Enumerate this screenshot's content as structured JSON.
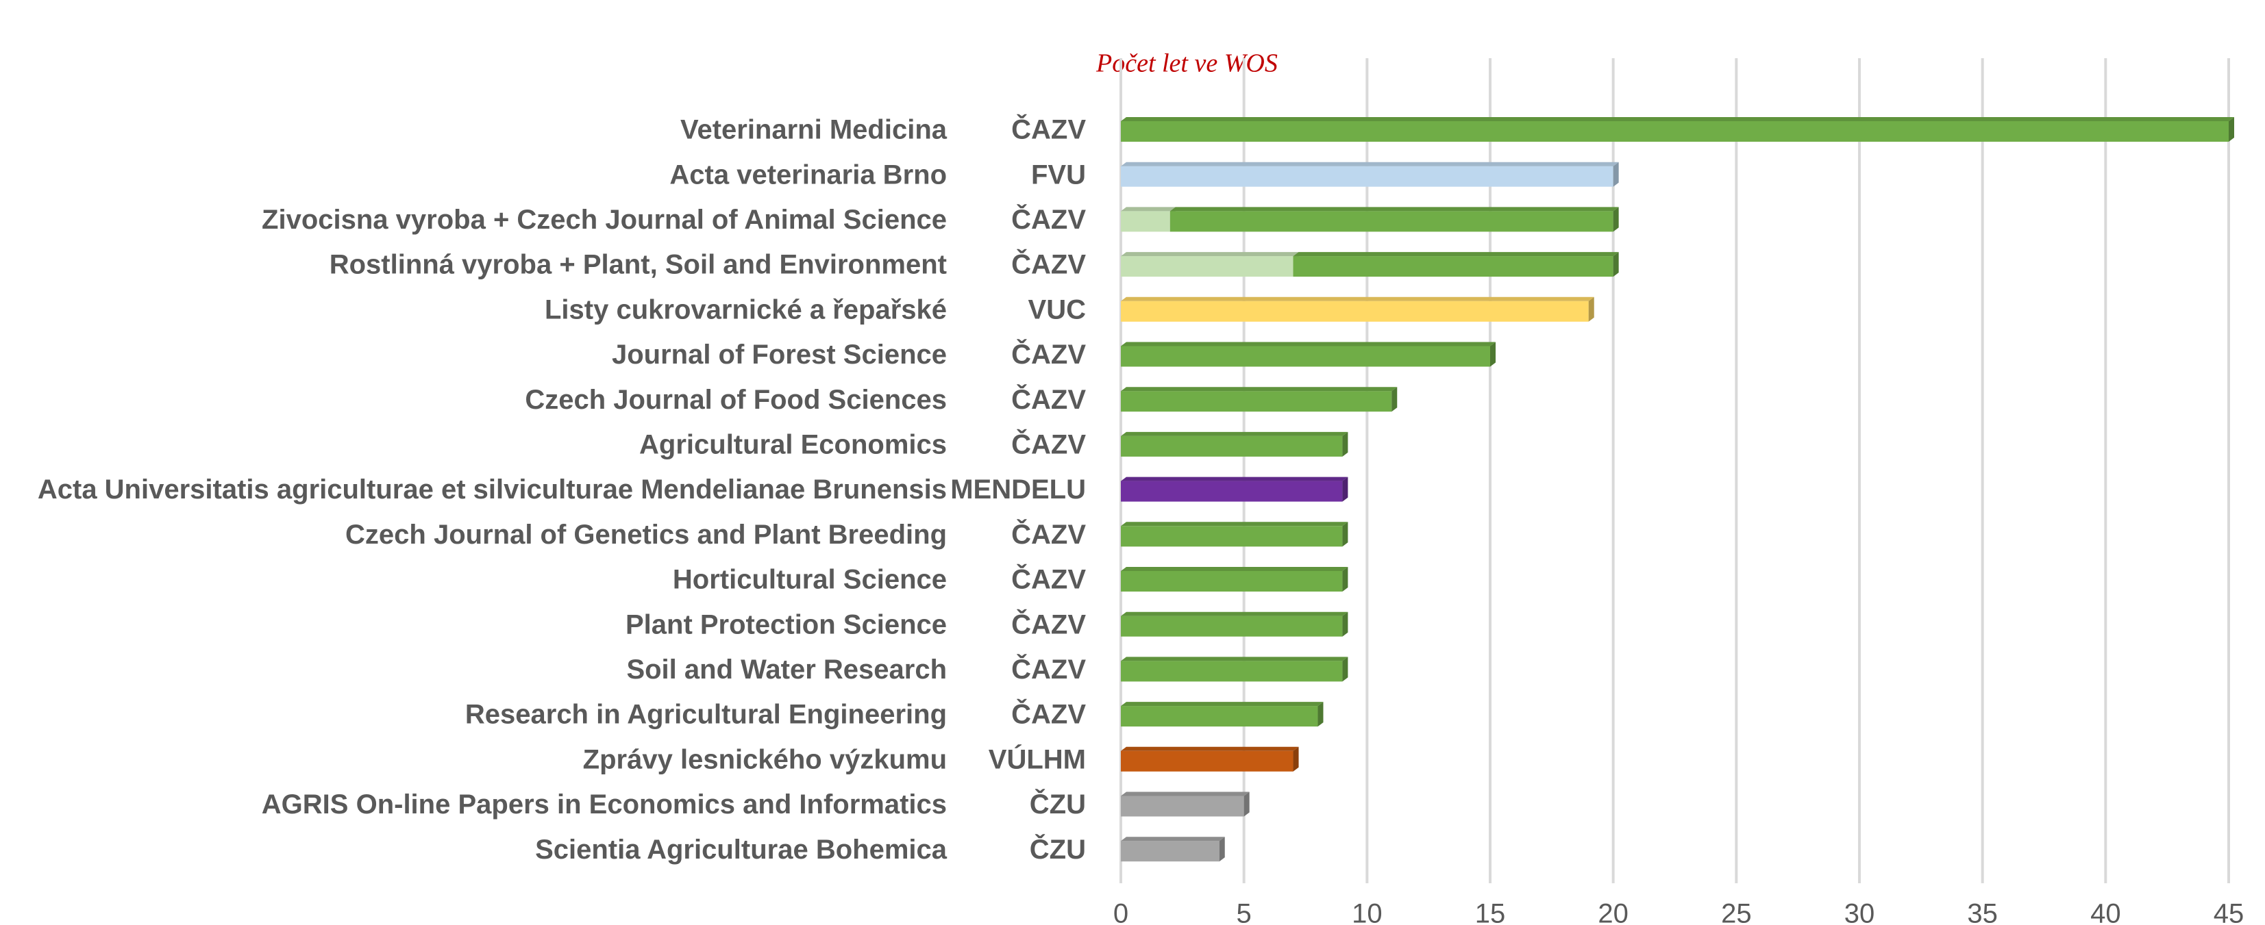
{
  "chart_data": {
    "type": "bar",
    "orientation": "horizontal",
    "title": "Počet let ve WOS",
    "categories": [
      "Veterinarni Medicina",
      "Acta veterinaria Brno",
      "Zivocisna vyroba + Czech Journal of Animal Science",
      "Rostlinná vyroba + Plant, Soil and Environment",
      "Listy cukrovarnické a řepařské",
      "Journal of Forest Science",
      "Czech Journal of Food Sciences",
      "Agricultural Economics",
      "Acta Universitatis agriculturae et silviculturae Mendelianae Brunensis",
      "Czech Journal of Genetics and Plant Breeding",
      "Horticultural Science",
      "Plant Protection Science",
      "Soil and Water Research",
      "Research in Agricultural Engineering",
      "Zprávy lesnického výzkumu",
      "AGRIS On-line Papers in Economics and Informatics",
      "Scientia Agriculturae Bohemica"
    ],
    "publishers": [
      "ČAZV",
      "FVU",
      "ČAZV",
      "ČAZV",
      "VUC",
      "ČAZV",
      "ČAZV",
      "ČAZV",
      "MENDELU",
      "ČAZV",
      "ČAZV",
      "ČAZV",
      "ČAZV",
      "ČAZV",
      "VÚLHM",
      "ČZU",
      "ČZU"
    ],
    "series": [
      {
        "values": [
          null,
          null,
          2,
          7,
          null,
          null,
          null,
          null,
          null,
          null,
          null,
          null,
          null,
          null,
          null,
          null,
          null
        ],
        "colors": [
          null,
          null,
          "#c5e0b4",
          "#c5e0b4",
          null,
          null,
          null,
          null,
          null,
          null,
          null,
          null,
          null,
          null,
          null,
          null,
          null
        ]
      },
      {
        "values": [
          45,
          20,
          18,
          13,
          19,
          15,
          11,
          9,
          9,
          9,
          9,
          9,
          9,
          8,
          7,
          5,
          4
        ],
        "colors": [
          "#70ad47",
          "#bdd7ee",
          "#70ad47",
          "#70ad47",
          "#ffd966",
          "#70ad47",
          "#70ad47",
          "#70ad47",
          "#7030a0",
          "#70ad47",
          "#70ad47",
          "#70ad47",
          "#70ad47",
          "#70ad47",
          "#c55a11",
          "#a5a5a5",
          "#a5a5a5"
        ]
      }
    ],
    "xlim": [
      0,
      45
    ],
    "xticks": [
      0,
      5,
      10,
      15,
      20,
      25,
      30,
      35,
      40,
      45
    ],
    "grid": true
  }
}
